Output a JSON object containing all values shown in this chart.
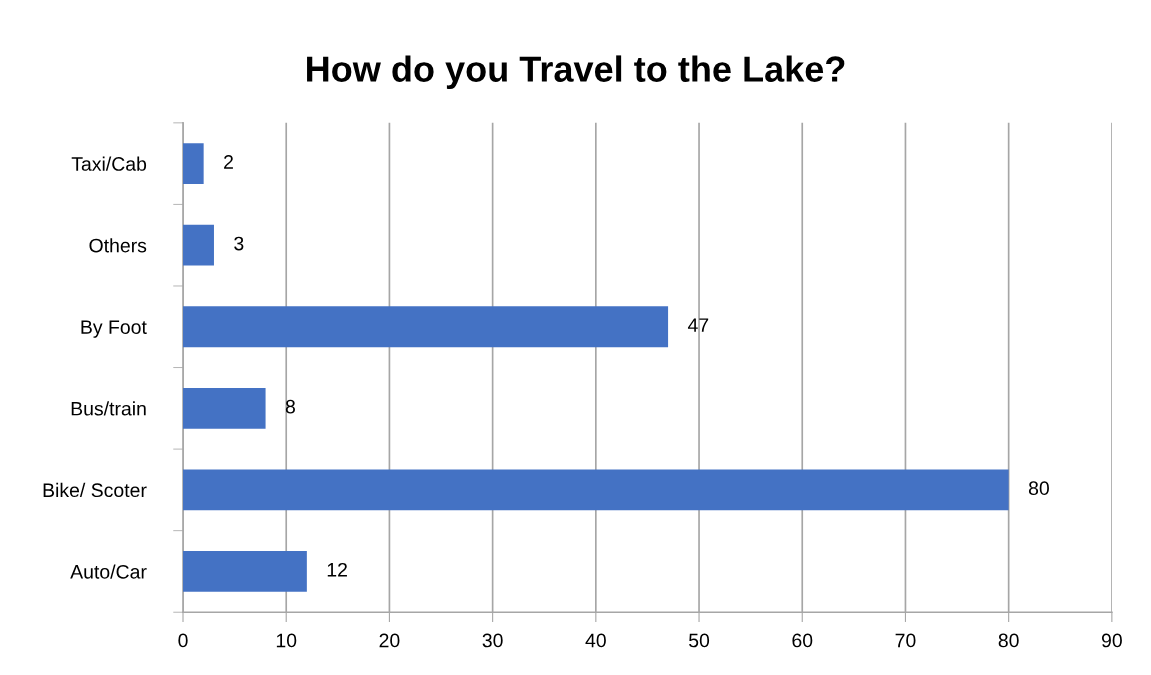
{
  "chart_data": {
    "type": "bar",
    "orientation": "horizontal",
    "title": "How do you Travel to the Lake?",
    "categories": [
      "Taxi/Cab",
      "Others",
      "By Foot",
      "Bus/train",
      "Bike/ Scoter",
      "Auto/Car"
    ],
    "values": [
      2,
      3,
      47,
      8,
      80,
      12
    ],
    "color": "#4472c4",
    "xlim": [
      0,
      90
    ],
    "xticks": [
      0,
      10,
      20,
      30,
      40,
      50,
      60,
      70,
      80,
      90
    ],
    "grid": "x",
    "data_labels": true
  }
}
